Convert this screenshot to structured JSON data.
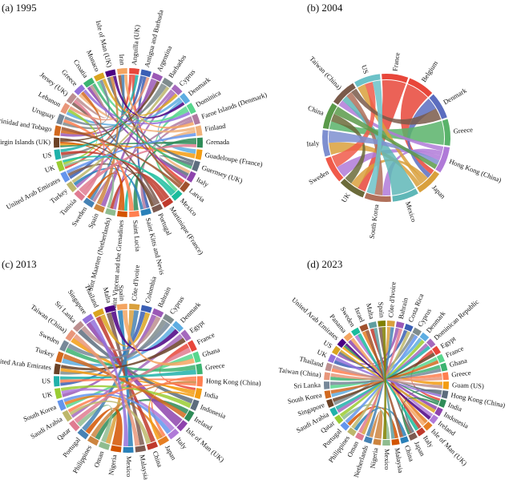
{
  "figure": {
    "panels": [
      {
        "id": "a",
        "title": "(a) 1995"
      },
      {
        "id": "b",
        "title": "(b) 2004"
      },
      {
        "id": "c",
        "title": "(c) 2013"
      },
      {
        "id": "d",
        "title": "(d) 2023"
      }
    ]
  },
  "chart_data": [
    {
      "type": "chord",
      "title": "(a) 1995",
      "nodes": [
        "Anguilla (UK)",
        "Antigua and Barbuda",
        "Argentina",
        "Barbados",
        "Cyprus",
        "Denmark",
        "Dominica",
        "Faroe Islands (Denmark)",
        "Finland",
        "Grenada",
        "Guadeloupe (France)",
        "Guernsey (UK)",
        "Italy",
        "Latvia",
        "Mexico",
        "Martinique (France)",
        "Portugal",
        "Saint Kitts and Nevis",
        "Saint Lucia",
        "Saint Vincent and the Grenadines",
        "Sint Maarten (Netherlands)",
        "Spain",
        "Sweden",
        "Tunisia",
        "Turkey",
        "United Arab Emirates",
        "UK",
        "US",
        "Virgin Islands (UK)",
        "Trinidad and Tobago",
        "Uruguay",
        "Lebanon",
        "Jersey (UK)",
        "Greece",
        "Croatia",
        "Monaco",
        "Isle of Man (UK)",
        "Iran"
      ],
      "node_colors": [
        "#e8463a",
        "#3a5fb5",
        "#9b59b6",
        "#7f8c8d",
        "#a569bd",
        "#5dade2",
        "#58d68d",
        "#b07aa1",
        "#f0b27a",
        "#2e8b57",
        "#f39c12",
        "#5d6d7e",
        "#8e44ad",
        "#a0522d",
        "#1abc9c",
        "#c0392b",
        "#7d5a50",
        "#2980b9",
        "#ff7f50",
        "#d35400",
        "#8fbc8f",
        "#cd853f",
        "#4682b4",
        "#e07b91",
        "#bdb76b",
        "#6495ed",
        "#9acd32",
        "#20b2aa",
        "#6b4226",
        "#d2691e",
        "#778899",
        "#e9967a",
        "#bc8f8f",
        "#9370db",
        "#3cb371",
        "#daa520",
        "#4b0082",
        "#f4a460"
      ],
      "links": [
        [
          0,
          26
        ],
        [
          0,
          13
        ],
        [
          1,
          25
        ],
        [
          1,
          17
        ],
        [
          2,
          21
        ],
        [
          2,
          29
        ],
        [
          3,
          27
        ],
        [
          3,
          30
        ],
        [
          4,
          24
        ],
        [
          4,
          20
        ],
        [
          5,
          31
        ],
        [
          5,
          10
        ],
        [
          6,
          14
        ],
        [
          6,
          35
        ],
        [
          7,
          22
        ],
        [
          7,
          17
        ],
        [
          8,
          33
        ],
        [
          8,
          12
        ],
        [
          9,
          18
        ],
        [
          9,
          28
        ],
        [
          10,
          28
        ],
        [
          11,
          36
        ],
        [
          11,
          12
        ],
        [
          12,
          34
        ],
        [
          13,
          37
        ],
        [
          14,
          19
        ],
        [
          15,
          20
        ],
        [
          15,
          27
        ],
        [
          16,
          32
        ],
        [
          16,
          25
        ],
        [
          17,
          24
        ],
        [
          18,
          30
        ],
        [
          19,
          28
        ],
        [
          20,
          26
        ],
        [
          21,
          36
        ],
        [
          22,
          37
        ],
        [
          23,
          32
        ],
        [
          23,
          9
        ],
        [
          24,
          3
        ],
        [
          25,
          8
        ],
        [
          26,
          31
        ],
        [
          27,
          0
        ],
        [
          28,
          2
        ],
        [
          29,
          33
        ],
        [
          30,
          35
        ],
        [
          31,
          1
        ],
        [
          32,
          34
        ],
        [
          33,
          6
        ],
        [
          34,
          11
        ],
        [
          35,
          4
        ],
        [
          36,
          5
        ],
        [
          37,
          7
        ],
        [
          28,
          16
        ],
        [
          19,
          22
        ],
        [
          14,
          26
        ],
        [
          13,
          29
        ]
      ]
    },
    {
      "type": "chord",
      "title": "(b) 2004",
      "nodes": [
        "France",
        "Belgium",
        "Denmark",
        "Greece",
        "Hong Kong (China)",
        "Japan",
        "Mexico",
        "South Korea",
        "UK",
        "Sweden",
        "Italy",
        "China",
        "Taiwan (China)",
        "US"
      ],
      "node_colors": [
        "#e8463a",
        "#e8463a",
        "#5b6dbf",
        "#59b36a",
        "#b07ad8",
        "#d9a03c",
        "#5fb7b7",
        "#b0705a",
        "#6b6b3a",
        "#f05a4a",
        "#7e8fd0",
        "#5a9a4a",
        "#7a5a4a",
        "#6cc2c8"
      ],
      "links": [
        [
          0,
          8
        ],
        [
          1,
          5
        ],
        [
          2,
          5
        ],
        [
          3,
          11
        ],
        [
          4,
          12
        ],
        [
          4,
          7
        ],
        [
          4,
          9
        ],
        [
          5,
          8
        ],
        [
          5,
          13
        ],
        [
          5,
          10
        ],
        [
          6,
          12
        ],
        [
          7,
          12
        ],
        [
          8,
          11
        ],
        [
          9,
          13
        ],
        [
          10,
          4
        ],
        [
          11,
          4
        ],
        [
          12,
          2
        ],
        [
          13,
          7
        ]
      ]
    },
    {
      "type": "chord",
      "title": "(c) 2013",
      "nodes": [
        "Côte d'Ivoire",
        "Colombia",
        "Bahrain",
        "Cyprus",
        "Denmark",
        "Egypt",
        "France",
        "Ghana",
        "Greece",
        "Hong Kong (China)",
        "India",
        "Indonesia",
        "Ireland",
        "Isle of Man (UK)",
        "Italy",
        "Japan",
        "China",
        "Malaysia",
        "Mexico",
        "Nigeria",
        "Oman",
        "Philippines",
        "Portugal",
        "Qatar",
        "Saudi Arabia",
        "South Korea",
        "UK",
        "US",
        "United Arab Emirates",
        "Turkey",
        "Sweden",
        "Taiwan (China)",
        "Sri Lanka",
        "Singapore",
        "Thailand",
        "Malta",
        "Spain"
      ],
      "node_colors": [
        "#d9a03c",
        "#3a5fb5",
        "#9b59b6",
        "#7f8c8d",
        "#5dade2",
        "#a569bd",
        "#e8463a",
        "#58d68d",
        "#3cb371",
        "#ff7f50",
        "#f39c12",
        "#5d6d7e",
        "#2e8b57",
        "#8e44ad",
        "#b07ad8",
        "#e67e22",
        "#c0392b",
        "#7d5a50",
        "#2980b9",
        "#d35400",
        "#8fbc8f",
        "#cd853f",
        "#4682b4",
        "#e07b91",
        "#bdb76b",
        "#6495ed",
        "#9acd32",
        "#20b2aa",
        "#6b4226",
        "#d2691e",
        "#778899",
        "#e9967a",
        "#bc8f8f",
        "#9370db",
        "#daa520",
        "#4b0082",
        "#f4a460"
      ],
      "links": [
        [
          0,
          20
        ],
        [
          1,
          27
        ],
        [
          2,
          26
        ],
        [
          3,
          28
        ],
        [
          4,
          29
        ],
        [
          5,
          24
        ],
        [
          6,
          10
        ],
        [
          7,
          25
        ],
        [
          8,
          30
        ],
        [
          9,
          15
        ],
        [
          9,
          27
        ],
        [
          10,
          28
        ],
        [
          10,
          31
        ],
        [
          11,
          32
        ],
        [
          12,
          21
        ],
        [
          13,
          33
        ],
        [
          14,
          26
        ],
        [
          15,
          25
        ],
        [
          16,
          34
        ],
        [
          17,
          35
        ],
        [
          18,
          36
        ],
        [
          19,
          22
        ],
        [
          20,
          23
        ],
        [
          21,
          9
        ],
        [
          22,
          0
        ],
        [
          23,
          6
        ],
        [
          24,
          16
        ],
        [
          25,
          14
        ],
        [
          26,
          11
        ],
        [
          27,
          8
        ],
        [
          28,
          5
        ],
        [
          29,
          12
        ],
        [
          30,
          3
        ],
        [
          31,
          17
        ],
        [
          32,
          2
        ],
        [
          33,
          18
        ],
        [
          34,
          1
        ],
        [
          35,
          4
        ],
        [
          36,
          7
        ],
        [
          9,
          24
        ],
        [
          10,
          15
        ]
      ]
    },
    {
      "type": "chord",
      "title": "(d) 2023",
      "nodes": [
        "Côte d'Ivoire",
        "Bahrain",
        "Costa Rica",
        "Cyprus",
        "Denmark",
        "Dominican Republic",
        "Egypt",
        "France",
        "Ghana",
        "Greece",
        "Guam (US)",
        "Hong Kong (China)",
        "India",
        "Indonesia",
        "Ireland",
        "Isle of Man (UK)",
        "Italy",
        "Japan",
        "China",
        "Malaysia",
        "Mexico",
        "Nigeria",
        "Netherlands",
        "Oman",
        "Philippines",
        "Portugal",
        "Qatar",
        "Saudi Arabia",
        "Singapore",
        "South Korea",
        "Sri Lanka",
        "Taiwan (China)",
        "Thailand",
        "UK",
        "US",
        "United Arab Emirates",
        "Panama",
        "Sweden",
        "Israel",
        "Malta",
        "Spain"
      ],
      "node_colors": [
        "#d9a03c",
        "#9b59b6",
        "#3a5fb5",
        "#7f8c8d",
        "#5dade2",
        "#a569bd",
        "#e8463a",
        "#58d68d",
        "#3cb371",
        "#ff7f50",
        "#f39c12",
        "#5d6d7e",
        "#2e8b57",
        "#8e44ad",
        "#b07ad8",
        "#e67e22",
        "#c0392b",
        "#7d5a50",
        "#2980b9",
        "#d35400",
        "#8fbc8f",
        "#cd853f",
        "#4682b4",
        "#e07b91",
        "#bdb76b",
        "#6495ed",
        "#9acd32",
        "#20b2aa",
        "#6b4226",
        "#d2691e",
        "#778899",
        "#e9967a",
        "#bc8f8f",
        "#9370db",
        "#daa520",
        "#4b0082",
        "#f4a460",
        "#1abc9c",
        "#a0522d",
        "#5f9ea0",
        "#808000"
      ],
      "links": [
        [
          0,
          23
        ],
        [
          1,
          34
        ],
        [
          2,
          33
        ],
        [
          3,
          28
        ],
        [
          4,
          29
        ],
        [
          5,
          27
        ],
        [
          6,
          12
        ],
        [
          7,
          30
        ],
        [
          8,
          31
        ],
        [
          9,
          32
        ],
        [
          10,
          35
        ],
        [
          11,
          17
        ],
        [
          11,
          34
        ],
        [
          12,
          35
        ],
        [
          13,
          36
        ],
        [
          14,
          37
        ],
        [
          15,
          38
        ],
        [
          16,
          39
        ],
        [
          17,
          40
        ],
        [
          18,
          24
        ],
        [
          19,
          25
        ],
        [
          20,
          26
        ],
        [
          21,
          22
        ],
        [
          22,
          0
        ],
        [
          23,
          1
        ],
        [
          24,
          2
        ],
        [
          25,
          3
        ],
        [
          26,
          4
        ],
        [
          27,
          5
        ],
        [
          28,
          6
        ],
        [
          29,
          7
        ],
        [
          30,
          8
        ],
        [
          31,
          9
        ],
        [
          32,
          10
        ],
        [
          33,
          11
        ],
        [
          34,
          13
        ],
        [
          35,
          14
        ],
        [
          36,
          15
        ],
        [
          37,
          16
        ],
        [
          38,
          18
        ],
        [
          39,
          19
        ],
        [
          40,
          20
        ],
        [
          12,
          17
        ]
      ]
    }
  ]
}
